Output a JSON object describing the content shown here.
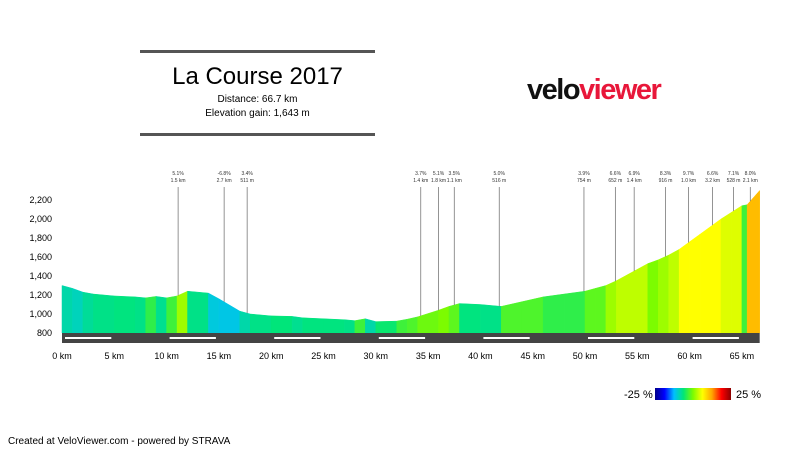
{
  "header": {
    "title": "La Course 2017",
    "distance": "Distance: 66.7 km",
    "elevation_gain": "Elevation gain: 1,643 m"
  },
  "logo": {
    "part1": "velo",
    "part2": "viewer",
    "colors": {
      "part1": "#111111",
      "part2": "#e8173a"
    }
  },
  "legend": {
    "min_label": "-25 %",
    "max_label": "25 %"
  },
  "footer": "Created at VeloViewer.com - powered by STRAVA",
  "chart_data": {
    "type": "area",
    "title": "",
    "xlabel": "",
    "ylabel": "",
    "xlim": [
      0,
      66.7
    ],
    "ylim": [
      800,
      2300
    ],
    "x_ticks": [
      "0 km",
      "5 km",
      "10 km",
      "15 km",
      "20 km",
      "25 km",
      "30 km",
      "35 km",
      "40 km",
      "45 km",
      "50 km",
      "55 km",
      "60 km",
      "65 km"
    ],
    "x_tick_values": [
      0,
      5,
      10,
      15,
      20,
      25,
      30,
      35,
      40,
      45,
      50,
      55,
      60,
      65
    ],
    "y_ticks": [
      "800",
      "1,000",
      "1,200",
      "1,400",
      "1,600",
      "1,800",
      "2,000",
      "2,200"
    ],
    "y_tick_values": [
      800,
      1000,
      1200,
      1400,
      1600,
      1800,
      2000,
      2200
    ],
    "color_scale": {
      "min": -25,
      "max": 25,
      "unit": "%"
    },
    "profile": {
      "distance_km": [
        0,
        1,
        2,
        3,
        5,
        7,
        8,
        9,
        10,
        11,
        12,
        14,
        15,
        17,
        18,
        20,
        22,
        23,
        25,
        27,
        28,
        29,
        30,
        32,
        33,
        34,
        36,
        37,
        38,
        40,
        42,
        44,
        46,
        48,
        50,
        51,
        52,
        53,
        54,
        55,
        56,
        57,
        58,
        59,
        60,
        61,
        62,
        63,
        64,
        65,
        65.5,
        66.7
      ],
      "elevation_m": [
        1300,
        1270,
        1230,
        1210,
        1190,
        1180,
        1170,
        1185,
        1170,
        1190,
        1240,
        1220,
        1160,
        1030,
        1000,
        980,
        975,
        960,
        950,
        940,
        930,
        950,
        920,
        925,
        945,
        970,
        1040,
        1080,
        1110,
        1100,
        1080,
        1130,
        1180,
        1210,
        1240,
        1270,
        1300,
        1350,
        1410,
        1470,
        1530,
        1570,
        1620,
        1680,
        1760,
        1840,
        1920,
        2000,
        2070,
        2140,
        2150,
        2300
      ]
    },
    "climb_markers": [
      {
        "km": 11.1,
        "grade": "5.1%",
        "length": "1.5 km"
      },
      {
        "km": 15.5,
        "grade": "-6.8%",
        "length": "2.7 km"
      },
      {
        "km": 17.7,
        "grade": "3.4%",
        "length": "511 m"
      },
      {
        "km": 34.3,
        "grade": "3.7%",
        "length": "1.4 km"
      },
      {
        "km": 36.0,
        "grade": "5.1%",
        "length": "1.8 km"
      },
      {
        "km": 37.5,
        "grade": "3.5%",
        "length": "1.1 km"
      },
      {
        "km": 41.8,
        "grade": "5.0%",
        "length": "516 m"
      },
      {
        "km": 49.9,
        "grade": "3.9%",
        "length": "754 m"
      },
      {
        "km": 52.9,
        "grade": "6.6%",
        "length": "652 m"
      },
      {
        "km": 54.7,
        "grade": "6.9%",
        "length": "1.4 km"
      },
      {
        "km": 57.7,
        "grade": "8.3%",
        "length": "916 m"
      },
      {
        "km": 59.9,
        "grade": "9.7%",
        "length": "1.0 km"
      },
      {
        "km": 62.2,
        "grade": "6.6%",
        "length": "3.2 km"
      },
      {
        "km": 64.2,
        "grade": "7.1%",
        "length": "528 m"
      },
      {
        "km": 65.8,
        "grade": "8.0%",
        "length": "2.1 km"
      }
    ]
  }
}
